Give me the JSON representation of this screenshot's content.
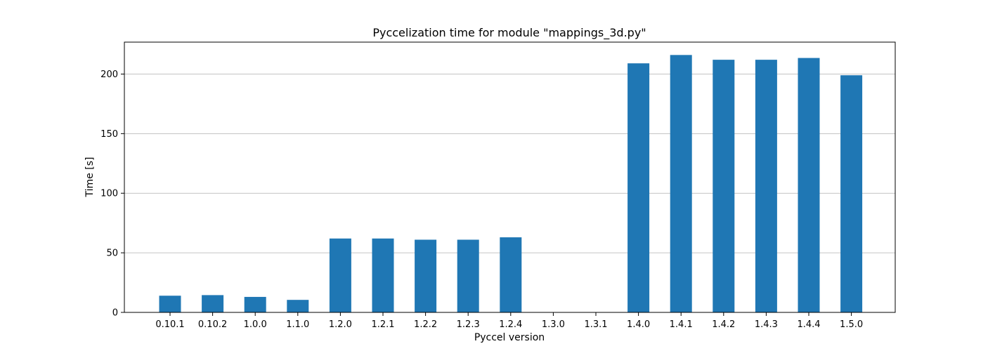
{
  "chart_data": {
    "type": "bar",
    "title": "Pyccelization time for module \"mappings_3d.py\"",
    "xlabel": "Pyccel version",
    "ylabel": "Time [s]",
    "categories": [
      "0.10.1",
      "0.10.2",
      "1.0.0",
      "1.1.0",
      "1.2.0",
      "1.2.1",
      "1.2.2",
      "1.2.3",
      "1.2.4",
      "1.3.0",
      "1.3.1",
      "1.4.0",
      "1.4.1",
      "1.4.2",
      "1.4.3",
      "1.4.4",
      "1.5.0"
    ],
    "values": [
      14,
      14.5,
      13,
      10.5,
      62,
      62,
      61,
      61,
      63,
      0,
      0,
      209,
      216,
      212,
      212,
      213.5,
      199
    ],
    "ylim": [
      0,
      226.8
    ],
    "yticks": [
      0,
      50,
      100,
      150,
      200
    ],
    "grid": "y",
    "bar_color": "#1f77b4"
  }
}
